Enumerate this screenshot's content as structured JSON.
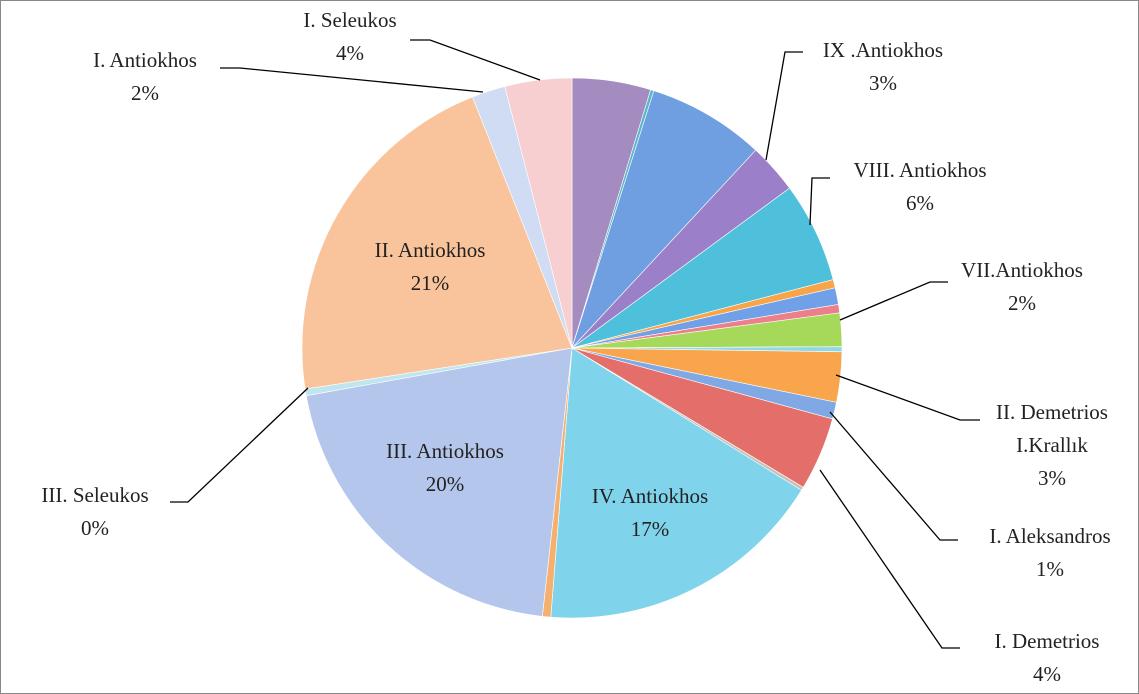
{
  "chart_data": {
    "type": "pie",
    "categories": [
      null,
      null,
      null,
      "IX .Antiokhos",
      "VIII. Antiokhos",
      null,
      null,
      null,
      "VII.Antiokhos",
      null,
      "II. Demetrios\nI.Krallık",
      "I. Aleksandros",
      "I. Demetrios",
      null,
      "IV. Antiokhos",
      null,
      "III. Antiokhos",
      "III. Seleukos",
      "II. Antiokhos",
      "I. Antiokhos",
      "I. Seleukos"
    ],
    "values": [
      4.7,
      0.2,
      7.0,
      3.0,
      6.0,
      0.5,
      1.0,
      0.5,
      2.0,
      0.3,
      3.0,
      1.0,
      4.4,
      0.2,
      17.4,
      0.5,
      20.4,
      0.4,
      21.4,
      2.0,
      4.0
    ],
    "value_labels": [
      null,
      null,
      null,
      "3%",
      "6%",
      null,
      null,
      null,
      "2%",
      null,
      "3%",
      "1%",
      "4%",
      null,
      "17%",
      null,
      "20%",
      "0%",
      "21%",
      "2%",
      "4%"
    ],
    "colors": [
      "#a48cc0",
      "#5ab8c8",
      "#6f9fe0",
      "#9b7fc8",
      "#4fc0dc",
      "#f7a44a",
      "#6fa0e8",
      "#ec7f8a",
      "#a6d85a",
      "#8fd8e8",
      "#f9a54c",
      "#7fa8e4",
      "#e46f6a",
      "#c8c0b8",
      "#7fd4ec",
      "#f5b070",
      "#b4c6ec",
      "#bfe6ee",
      "#f9c49c",
      "#cfdcf4",
      "#f7cfd0"
    ]
  }
}
